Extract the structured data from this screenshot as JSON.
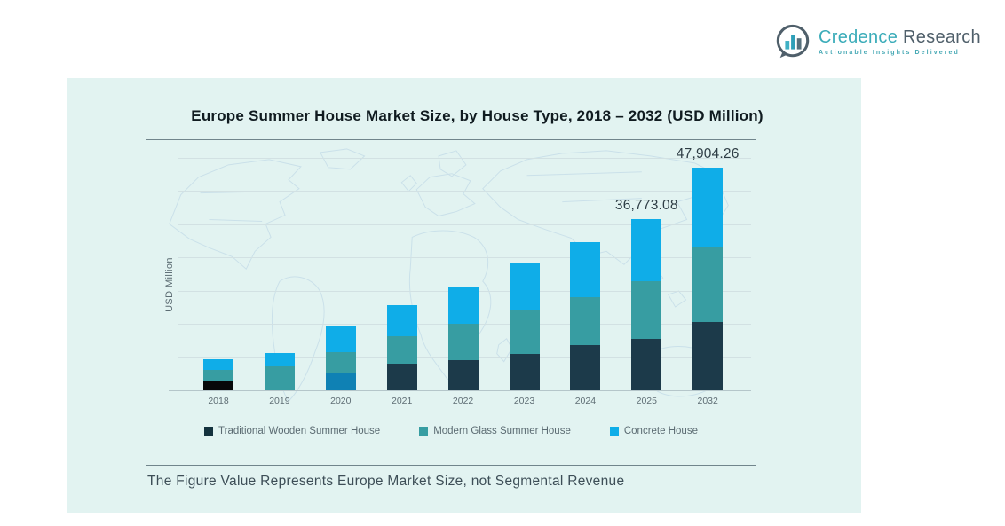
{
  "logo": {
    "brand_primary": "Credence",
    "brand_secondary": "Research",
    "tagline": "Actionable Insights Delivered",
    "accent_color": "#3BACB9",
    "dark_color": "#4F5F6A"
  },
  "panel": {
    "title": "Europe Summer House Market Size, by House Type, 2018 – 2032 (USD Million)",
    "footnote": "The Figure Value Represents Europe Market Size, not Segmental Revenue",
    "background_color": "#E2F3F1"
  },
  "chart_data": {
    "type": "bar",
    "stacked": true,
    "title": "Europe Summer House Market Size, by House Type, 2018 – 2032 (USD Million)",
    "xlabel": "",
    "ylabel": "USD Million",
    "ylim": [
      0,
      50000
    ],
    "grid": "horizontal",
    "legend_position": "bottom",
    "categories": [
      "2018",
      "2019",
      "2020",
      "2021",
      "2022",
      "2023",
      "2024",
      "2025",
      "2032"
    ],
    "series": [
      {
        "name": "Traditional Wooden Summer House",
        "color": "#1C3A4A",
        "values": [
          2150,
          0,
          3770,
          5740,
          6460,
          7890,
          9690,
          11120,
          14720
        ],
        "segment_color_overrides": {
          "0": "#070809",
          "2": "#0F81B4"
        }
      },
      {
        "name": "Modern Glass Summer House",
        "color": "#379DA2",
        "values": [
          2330,
          5200,
          4490,
          5920,
          7890,
          9330,
          10400,
          12380,
          15970
        ]
      },
      {
        "name": "Concrete House",
        "color": "#0FADE8",
        "values": [
          2150,
          2870,
          5560,
          6640,
          7890,
          10050,
          11840,
          13273.08,
          17214.26
        ]
      }
    ],
    "point_labels": [
      null,
      null,
      null,
      null,
      null,
      null,
      null,
      "36,773.08",
      "47,904.26"
    ],
    "labeled_totals": {
      "2025": "36,773.08",
      "2032": "47,904.26"
    }
  }
}
